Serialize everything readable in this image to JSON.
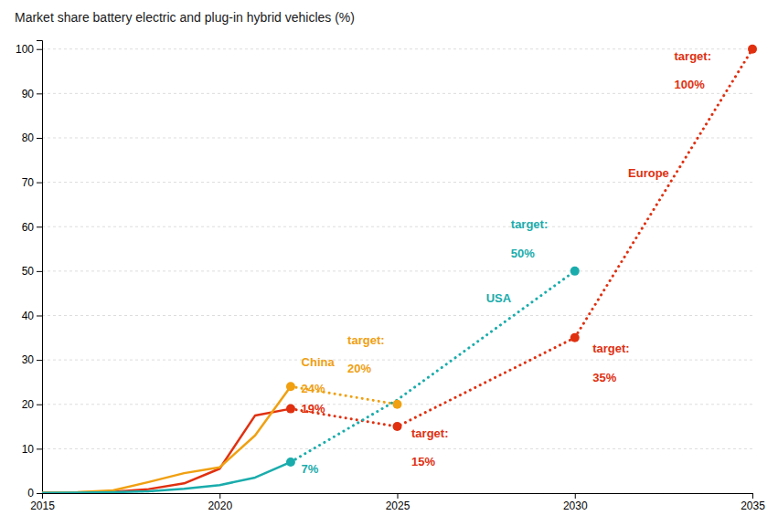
{
  "chart_data": {
    "type": "line",
    "title": "Market share battery electric and plug-in hybrid vehicles (%)",
    "xlim": [
      2015,
      2035
    ],
    "ylim": [
      0,
      102
    ],
    "xticks": [
      2015,
      2020,
      2025,
      2030,
      2035
    ],
    "yticks": [
      0,
      10,
      20,
      30,
      40,
      50,
      60,
      70,
      80,
      90,
      100
    ],
    "grid": true,
    "series": [
      {
        "color": "#e03010",
        "line_style": "solid",
        "x": [
          2015,
          2016,
          2017,
          2018,
          2019,
          2020,
          2021,
          2022
        ],
        "values": [
          0.1,
          0.15,
          0.3,
          0.9,
          2.2,
          5.5,
          17.5,
          19.0
        ]
      },
      {
        "color": "#f0a010",
        "line_style": "solid",
        "x": [
          2015,
          2016,
          2017,
          2018,
          2019,
          2020,
          2021,
          2022
        ],
        "values": [
          0.1,
          0.2,
          0.6,
          2.5,
          4.5,
          5.8,
          13.0,
          24.0
        ]
      },
      {
        "color": "#1aacac",
        "line_style": "solid",
        "x": [
          2015,
          2016,
          2017,
          2018,
          2019,
          2020,
          2021,
          2022
        ],
        "values": [
          0.05,
          0.1,
          0.2,
          0.4,
          1.0,
          1.8,
          3.5,
          7.0
        ]
      },
      {
        "color": "#e03010",
        "line_style": "dotted",
        "x": [
          2022,
          2025,
          2030,
          2035
        ],
        "values": [
          19.0,
          15.0,
          35.0,
          100.0
        ]
      },
      {
        "color": "#f0a010",
        "line_style": "dotted",
        "x": [
          2022,
          2025
        ],
        "values": [
          24.0,
          20.0
        ]
      },
      {
        "color": "#1aacac",
        "line_style": "dotted",
        "x": [
          2022,
          2025,
          2030
        ],
        "values": [
          7.0,
          21.0,
          50.0
        ]
      },
      {
        "type": "scatter",
        "marker": "circle",
        "color": "#e03010",
        "x": [
          2022,
          2025,
          2030,
          2035
        ],
        "values": [
          19.0,
          15.0,
          35.0,
          100.0
        ]
      },
      {
        "type": "scatter",
        "marker": "circle",
        "color": "#f0a010",
        "x": [
          2022,
          2025
        ],
        "values": [
          24.0,
          20.0
        ]
      },
      {
        "type": "scatter",
        "marker": "circle",
        "color": "#1aacac",
        "x": [
          2022,
          2030
        ],
        "values": [
          7.0,
          50.0
        ]
      }
    ],
    "annotations": [
      {
        "text": "China",
        "x": 2022.3,
        "y": 29.5,
        "color": "#f0a010"
      },
      {
        "text": "24%",
        "x": 2022.3,
        "y": 23.5,
        "color": "#f0a010"
      },
      {
        "text": "19%",
        "x": 2022.3,
        "y": 19.0,
        "color": "#e03010"
      },
      {
        "text": "7%",
        "x": 2022.3,
        "y": 5.5,
        "color": "#1aacac"
      },
      {
        "text": "target:",
        "x": 2023.6,
        "y": 34.5,
        "color": "#f0a010"
      },
      {
        "text": "20%",
        "x": 2023.6,
        "y": 28.0,
        "color": "#f0a010"
      },
      {
        "text": "target:",
        "x": 2025.4,
        "y": 13.5,
        "color": "#e03010"
      },
      {
        "text": "15%",
        "x": 2025.4,
        "y": 7.0,
        "color": "#e03010"
      },
      {
        "text": "USA",
        "x": 2027.5,
        "y": 44.0,
        "color": "#1aacac"
      },
      {
        "text": "target:",
        "x": 2028.2,
        "y": 60.5,
        "color": "#1aacac"
      },
      {
        "text": "50%",
        "x": 2028.2,
        "y": 54.0,
        "color": "#1aacac"
      },
      {
        "text": "Europe",
        "x": 2031.5,
        "y": 72.0,
        "color": "#e03010"
      },
      {
        "text": "target:",
        "x": 2030.5,
        "y": 32.5,
        "color": "#e03010"
      },
      {
        "text": "35%",
        "x": 2030.5,
        "y": 26.0,
        "color": "#e03010"
      },
      {
        "text": "target:",
        "x": 2032.8,
        "y": 98.5,
        "color": "#e03010"
      },
      {
        "text": "100%",
        "x": 2032.8,
        "y": 92.0,
        "color": "#e03010"
      }
    ]
  }
}
